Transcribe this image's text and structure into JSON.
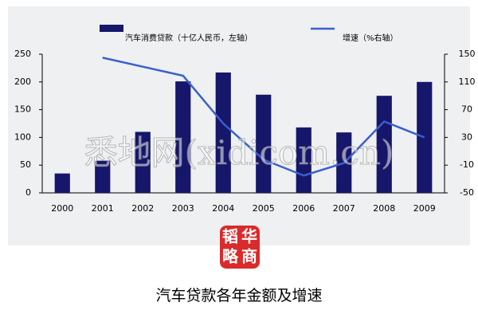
{
  "chart_data": {
    "type": "bar",
    "categories": [
      "2000",
      "2001",
      "2002",
      "2003",
      "2004",
      "2005",
      "2006",
      "2007",
      "2008",
      "2009"
    ],
    "series": [
      {
        "name": "汽车消费贷款（十亿人民币，左轴）",
        "color": "#16166b",
        "values": [
          35,
          58,
          110,
          201,
          217,
          177,
          118,
          109,
          175,
          200
        ]
      },
      {
        "name": "增速（%右轴）",
        "color": "#3a5fcd",
        "type": "line",
        "axis": "y2",
        "values": [
          null,
          145,
          132,
          119,
          50,
          -2,
          -25,
          -7,
          53,
          30
        ]
      }
    ],
    "ylim": [
      0,
      250
    ],
    "yticks": [
      0,
      50,
      100,
      150,
      200,
      250
    ],
    "y2lim": [
      -50,
      150
    ],
    "y2ticks": [
      -50,
      -10,
      30,
      70,
      110,
      150
    ]
  },
  "watermark": "悉地网(xidicom.cn)",
  "logo": [
    "韬",
    "华",
    "略",
    "商"
  ],
  "caption": "汽车贷款各年金额及增速"
}
